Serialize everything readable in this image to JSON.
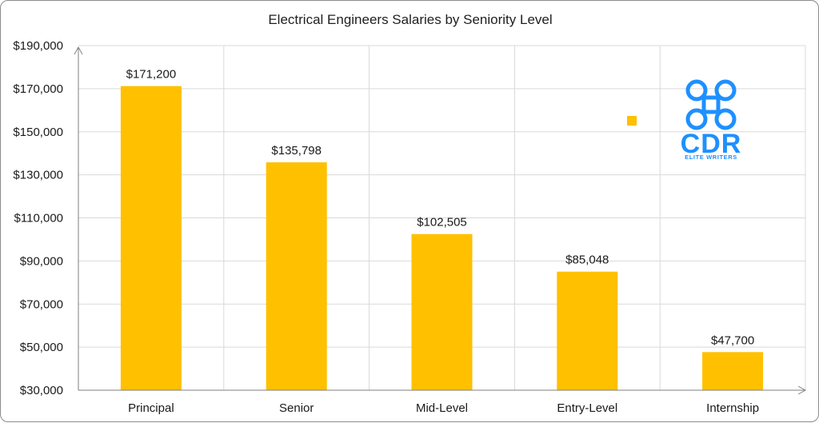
{
  "chart_data": {
    "type": "bar",
    "title": "Electrical Engineers Salaries by Seniority Level",
    "xlabel": "",
    "ylabel": "",
    "categories": [
      "Principal",
      "Senior",
      "Mid-Level",
      "Entry-Level",
      "Internship"
    ],
    "values": [
      171200,
      135798,
      102505,
      85048,
      47700
    ],
    "data_labels": [
      "$171,200",
      "$135,798",
      "$102,505",
      "$85,048",
      "$47,700"
    ],
    "ylim": [
      30000,
      190000
    ],
    "yticks": [
      30000,
      50000,
      70000,
      90000,
      110000,
      130000,
      150000,
      170000,
      190000
    ],
    "ytick_labels": [
      "$30,000",
      "$50,000",
      "$70,000",
      "$90,000",
      "$110,000",
      "$130,000",
      "$150,000",
      "$170,000",
      "$190,000"
    ],
    "grid": true,
    "bar_color": "#FFC000",
    "grid_color": "#d9d9d9",
    "legend": "none"
  },
  "logo": {
    "text": "CDR",
    "subtext": "ELITE WRITERS",
    "color": "#1E90FF"
  },
  "legend_marker_color": "#FFC000"
}
